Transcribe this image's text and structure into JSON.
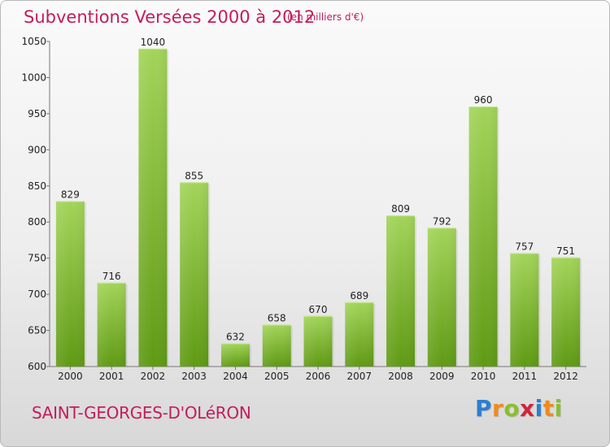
{
  "header": {
    "title": "Subventions Versées 2000 à 2012",
    "subtitle": "(en milliers d'€)"
  },
  "footer": {
    "commune": "SAINT-GEORGES-D'OLéRON",
    "logo_letters": [
      {
        "char": "P",
        "color": "#2a7fd1"
      },
      {
        "char": "r",
        "color": "#f08a1c"
      },
      {
        "char": "o",
        "color": "#8bbf2a"
      },
      {
        "char": "x",
        "color": "#d0253a"
      },
      {
        "char": "i",
        "color": "#2a7fd1"
      },
      {
        "char": "t",
        "color": "#f08a1c"
      },
      {
        "char": "i",
        "color": "#8bbf2a"
      }
    ]
  },
  "colors": {
    "bar_top": "#a3d45a",
    "bar_bottom": "#5f9a14",
    "accent": "#c21d5c"
  },
  "chart_data": {
    "type": "bar",
    "title": "Subventions Versées 2000 à 2012",
    "subtitle": "(en milliers d'€)",
    "categories": [
      "2000",
      "2001",
      "2002",
      "2003",
      "2004",
      "2005",
      "2006",
      "2007",
      "2008",
      "2009",
      "2010",
      "2011",
      "2012"
    ],
    "values": [
      829,
      716,
      1040,
      855,
      632,
      658,
      670,
      689,
      809,
      792,
      960,
      757,
      751
    ],
    "ylim": [
      600,
      1050
    ],
    "yticks": [
      600,
      650,
      700,
      750,
      800,
      850,
      900,
      950,
      1000,
      1050
    ],
    "grid": false,
    "legend": "none"
  }
}
